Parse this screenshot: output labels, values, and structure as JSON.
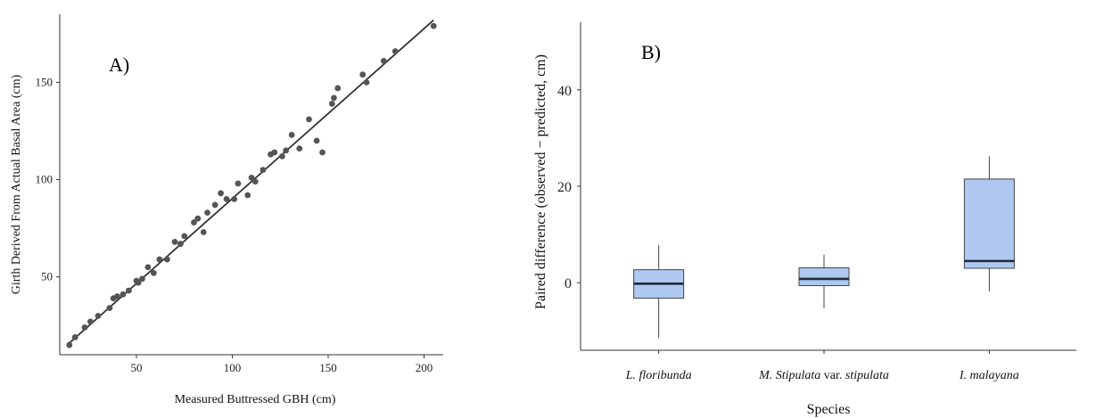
{
  "chart_data": [
    {
      "type": "scatter",
      "panel_label": "A)",
      "xlabel": "Measured Buttressed GBH (cm)",
      "ylabel": "Girth Derived From Actual Basal Area (cm)",
      "xlim": [
        10,
        210
      ],
      "ylim": [
        10,
        185
      ],
      "xticks": [
        50,
        100,
        150,
        200
      ],
      "yticks": [
        50,
        100,
        150
      ],
      "grid": false,
      "point_color": "#555555",
      "fit_line": {
        "x": [
          15,
          205
        ],
        "y": [
          16,
          182
        ]
      },
      "points": [
        {
          "x": 15,
          "y": 15
        },
        {
          "x": 18,
          "y": 19
        },
        {
          "x": 23,
          "y": 24
        },
        {
          "x": 26,
          "y": 27
        },
        {
          "x": 30,
          "y": 30
        },
        {
          "x": 36,
          "y": 34
        },
        {
          "x": 38,
          "y": 39
        },
        {
          "x": 40,
          "y": 40
        },
        {
          "x": 43,
          "y": 41
        },
        {
          "x": 46,
          "y": 43
        },
        {
          "x": 50,
          "y": 48
        },
        {
          "x": 51,
          "y": 47
        },
        {
          "x": 53,
          "y": 49
        },
        {
          "x": 56,
          "y": 55
        },
        {
          "x": 59,
          "y": 52
        },
        {
          "x": 62,
          "y": 59
        },
        {
          "x": 66,
          "y": 59
        },
        {
          "x": 70,
          "y": 68
        },
        {
          "x": 73,
          "y": 67
        },
        {
          "x": 75,
          "y": 71
        },
        {
          "x": 80,
          "y": 78
        },
        {
          "x": 82,
          "y": 80
        },
        {
          "x": 85,
          "y": 73
        },
        {
          "x": 87,
          "y": 83
        },
        {
          "x": 91,
          "y": 87
        },
        {
          "x": 94,
          "y": 93
        },
        {
          "x": 97,
          "y": 90
        },
        {
          "x": 101,
          "y": 90
        },
        {
          "x": 103,
          "y": 98
        },
        {
          "x": 108,
          "y": 92
        },
        {
          "x": 110,
          "y": 101
        },
        {
          "x": 112,
          "y": 99
        },
        {
          "x": 116,
          "y": 105
        },
        {
          "x": 120,
          "y": 113
        },
        {
          "x": 122,
          "y": 114
        },
        {
          "x": 126,
          "y": 112
        },
        {
          "x": 128,
          "y": 115
        },
        {
          "x": 131,
          "y": 123
        },
        {
          "x": 135,
          "y": 116
        },
        {
          "x": 140,
          "y": 131
        },
        {
          "x": 144,
          "y": 120
        },
        {
          "x": 147,
          "y": 114
        },
        {
          "x": 152,
          "y": 139
        },
        {
          "x": 153,
          "y": 142
        },
        {
          "x": 155,
          "y": 147
        },
        {
          "x": 168,
          "y": 154
        },
        {
          "x": 170,
          "y": 150
        },
        {
          "x": 179,
          "y": 161
        },
        {
          "x": 185,
          "y": 166
        },
        {
          "x": 205,
          "y": 179
        }
      ]
    },
    {
      "type": "box",
      "panel_label": "B)",
      "xlabel": "Species",
      "ylabel": "Paired difference (observed − predicted, cm)",
      "ylim": [
        -14,
        54
      ],
      "yticks": [
        0,
        20,
        40
      ],
      "grid": false,
      "box_fill": "#aec8ef",
      "box_stroke": "#444444",
      "categories": [
        {
          "label_parts": [
            {
              "text": "L. floribunda",
              "italic": true
            }
          ],
          "whisker_low": -11.5,
          "q1": -3.2,
          "median": -0.2,
          "q3": 2.7,
          "whisker_high": 7.8
        },
        {
          "label_parts": [
            {
              "text": "M. Stipulata",
              "italic": true
            },
            {
              "text": " var. ",
              "italic": false
            },
            {
              "text": "stipulata",
              "italic": true
            }
          ],
          "whisker_low": -5.3,
          "q1": -0.6,
          "median": 0.8,
          "q3": 3.1,
          "whisker_high": 5.8
        },
        {
          "label_parts": [
            {
              "text": "I. malayana",
              "italic": true
            }
          ],
          "whisker_low": -1.8,
          "q1": 3.0,
          "median": 4.5,
          "q3": 21.5,
          "whisker_high": 26.2
        }
      ]
    }
  ]
}
